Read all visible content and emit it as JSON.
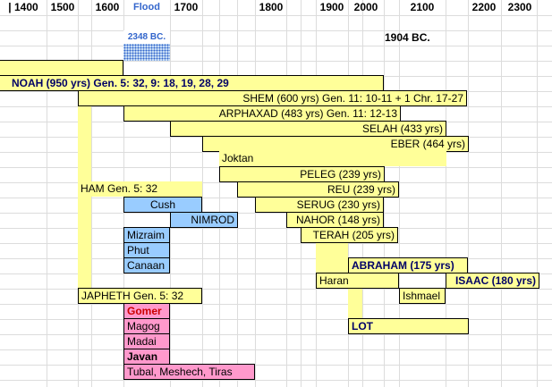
{
  "header": {
    "years": [
      "| 1400",
      "1500",
      "1600",
      "1700",
      "1800",
      "1900",
      "2000",
      "2100",
      "2200",
      "2300"
    ],
    "flood_label": "Flood",
    "flood_date": "2348 BC.",
    "abraham_date": "1904 BC."
  },
  "rows": {
    "noah": "NOAH (950 yrs) Gen. 5: 32, 9: 18, 19, 28, 29",
    "shem": "SHEM (600 yrs) Gen. 11: 10-11 + 1 Chr. 17-27",
    "arphaxad": "ARPHAXAD (483 yrs) Gen. 11: 12-13",
    "selah": "SELAH (433 yrs)",
    "eber": "EBER (464 yrs)",
    "joktan": "Joktan",
    "peleg": "PELEG (239 yrs)",
    "ham": "HAM Gen. 5: 32",
    "reu": "REU (239 yrs)",
    "cush": "Cush",
    "serug": "SERUG (230 yrs)",
    "nimrod": "NIMROD",
    "nahor": "NAHOR (148 yrs)",
    "mizraim": "Mizraim",
    "terah": "TERAH (205 yrs)",
    "phut": "Phut",
    "canaan": "Canaan",
    "abraham": "ABRAHAM (175 yrs)",
    "haran": "Haran",
    "isaac": "ISAAC (180 yrs)",
    "japheth": "JAPHETH Gen. 5: 32",
    "ishmael": "Ishmael",
    "gomer": "Gomer",
    "lot": "LOT",
    "magog": "Magog",
    "madai": "Madai",
    "javan": "Javan",
    "tubal": "Tubal, Meshech, Tiras"
  },
  "colors": {
    "line_of_shem": "#ffff99",
    "line_of_ham": "#99ccff",
    "line_of_japheth": "#ff99cc",
    "flood_marker": "#3366cc"
  }
}
